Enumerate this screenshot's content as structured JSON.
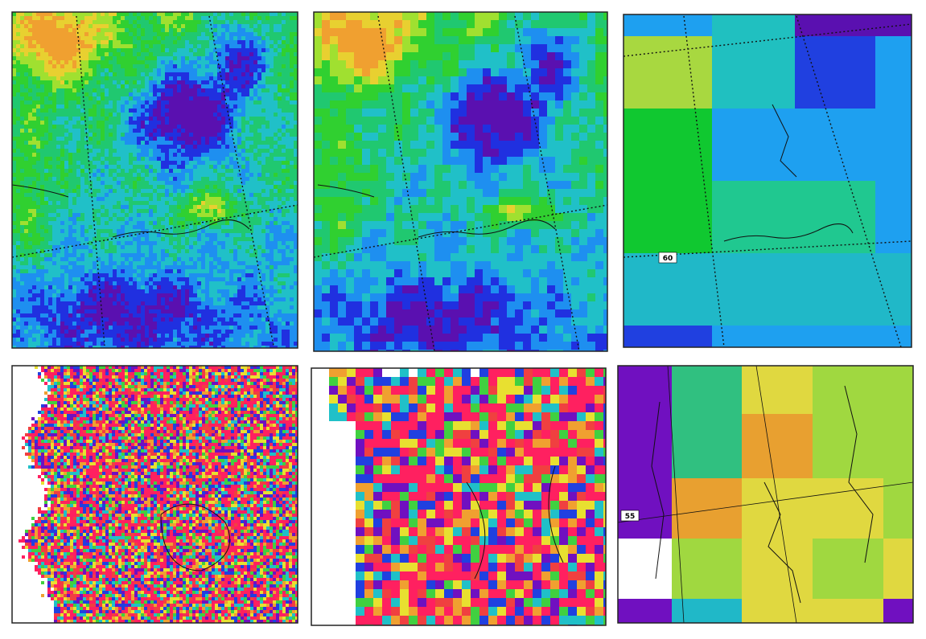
{
  "panels": [
    {
      "labels": []
    },
    {
      "labels": []
    },
    {
      "labels": [
        "60"
      ]
    },
    {
      "labels": []
    },
    {
      "labels": []
    },
    {
      "labels": [
        "55"
      ]
    }
  ]
}
